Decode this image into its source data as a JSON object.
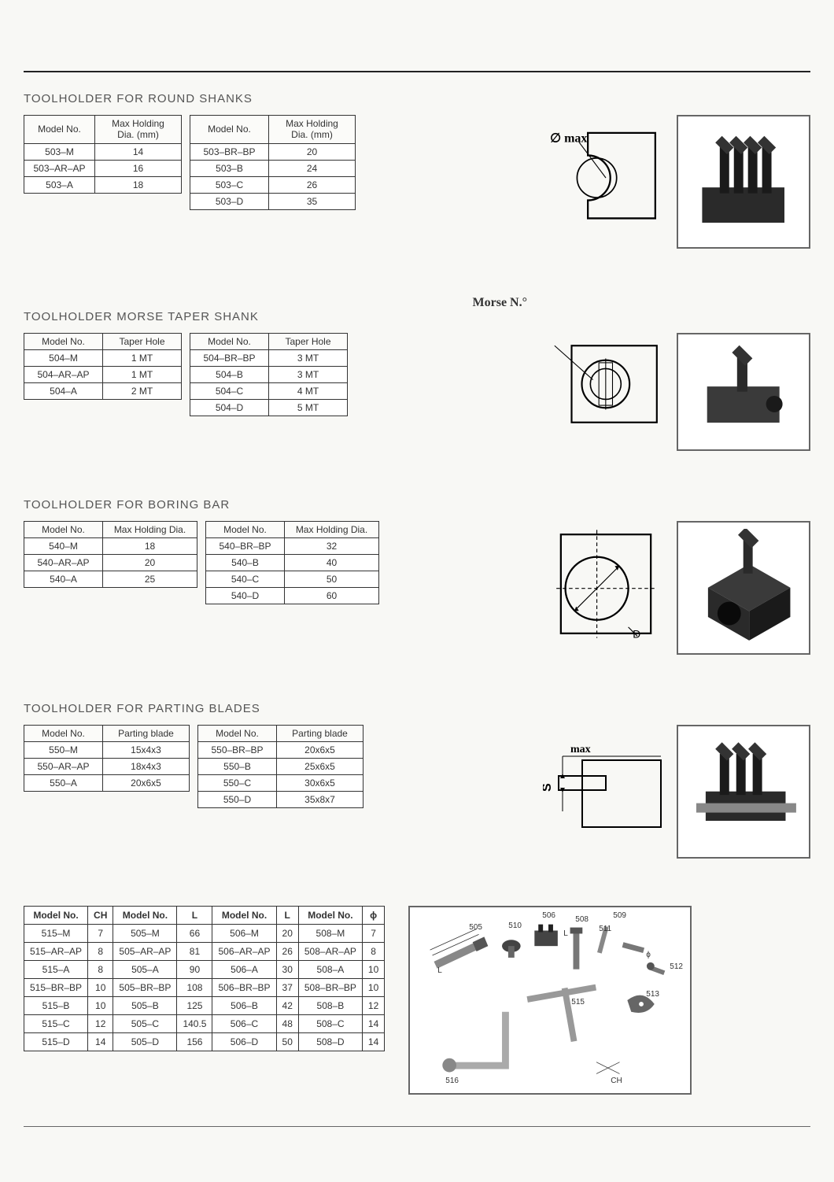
{
  "page": {
    "background_color": "#f8f8f5",
    "rule_color": "#222222",
    "border_color": "#333333",
    "photo_border_color": "#666666",
    "text_color": "#333333",
    "title_color": "#555555",
    "title_fontsize": 15,
    "table_fontsize": 12
  },
  "sections": {
    "round_shanks": {
      "title": "TOOLHOLDER FOR  ROUND SHANKS",
      "col1_header": "Model No.",
      "col2_header": "Max Holding\nDia. (mm)",
      "table_a": [
        {
          "model": "503–M",
          "val": "14"
        },
        {
          "model": "503–AR–AP",
          "val": "16"
        },
        {
          "model": "503–A",
          "val": "18"
        }
      ],
      "table_b": [
        {
          "model": "503–BR–BP",
          "val": "20"
        },
        {
          "model": "503–B",
          "val": "24"
        },
        {
          "model": "503–C",
          "val": "26"
        },
        {
          "model": "503–D",
          "val": "35"
        }
      ],
      "diagram_label": "∅ max"
    },
    "morse_taper": {
      "title": "TOOLHOLDER MORSE TAPER SHANK",
      "col1_header": "Model No.",
      "col2_header": "Taper Hole",
      "table_a": [
        {
          "model": "504–M",
          "val": "1 MT"
        },
        {
          "model": "504–AR–AP",
          "val": "1 MT"
        },
        {
          "model": "504–A",
          "val": "2 MT"
        }
      ],
      "table_b": [
        {
          "model": "504–BR–BP",
          "val": "3 MT"
        },
        {
          "model": "504–B",
          "val": "3 MT"
        },
        {
          "model": "504–C",
          "val": "4 MT"
        },
        {
          "model": "504–D",
          "val": "5 MT"
        }
      ],
      "diagram_label": "Morse N.°"
    },
    "boring_bar": {
      "title": "TOOLHOLDER FOR BORING BAR",
      "col1_header": "Model No.",
      "col2_header": "Max Holding Dia.",
      "table_a": [
        {
          "model": "540–M",
          "val": "18"
        },
        {
          "model": "540–AR–AP",
          "val": "20"
        },
        {
          "model": "540–A",
          "val": "25"
        }
      ],
      "table_b": [
        {
          "model": "540–BR–BP",
          "val": "32"
        },
        {
          "model": "540–B",
          "val": "40"
        },
        {
          "model": "540–C",
          "val": "50"
        },
        {
          "model": "540–D",
          "val": "60"
        }
      ],
      "diagram_label": "D"
    },
    "parting_blades": {
      "title": "TOOLHOLDER FOR PARTING BLADES",
      "col1_header": "Model No.",
      "col2_header": "Parting blade",
      "table_a": [
        {
          "model": "550–M",
          "val": "15x4x3"
        },
        {
          "model": "550–AR–AP",
          "val": "18x4x3"
        },
        {
          "model": "550–A",
          "val": "20x6x5"
        }
      ],
      "table_b": [
        {
          "model": "550–BR–BP",
          "val": "20x6x5"
        },
        {
          "model": "550–B",
          "val": "25x6x5"
        },
        {
          "model": "550–C",
          "val": "30x6x5"
        },
        {
          "model": "550–D",
          "val": "35x8x7"
        }
      ],
      "diagram_label_left": "S",
      "diagram_label_top": "max"
    }
  },
  "combined_table": {
    "headers": [
      "Model No.",
      "CH",
      "Model No.",
      "L",
      "Model No.",
      "L",
      "Model No.",
      "ϕ"
    ],
    "rows": [
      [
        "515–M",
        "7",
        "505–M",
        "66",
        "506–M",
        "20",
        "508–M",
        "7"
      ],
      [
        "515–AR–AP",
        "8",
        "505–AR–AP",
        "81",
        "506–AR–AP",
        "26",
        "508–AR–AP",
        "8"
      ],
      [
        "515–A",
        "8",
        "505–A",
        "90",
        "506–A",
        "30",
        "508–A",
        "10"
      ],
      [
        "515–BR–BP",
        "10",
        "505–BR–BP",
        "108",
        "506–BR–BP",
        "37",
        "508–BR–BP",
        "10"
      ],
      [
        "515–B",
        "10",
        "505–B",
        "125",
        "506–B",
        "42",
        "508–B",
        "12"
      ],
      [
        "515–C",
        "12",
        "505–C",
        "140.5",
        "506–C",
        "48",
        "508–C",
        "14"
      ],
      [
        "515–D",
        "14",
        "505–D",
        "156",
        "506–D",
        "50",
        "508–D",
        "14"
      ]
    ]
  },
  "parts_labels": {
    "p505": "505",
    "p506": "506",
    "p508": "508",
    "p509": "509",
    "p510": "510",
    "p511": "511",
    "p512": "512",
    "p513": "513",
    "p515": "515",
    "p516": "516",
    "L": "L",
    "CH": "CH",
    "phi": "ϕ"
  }
}
